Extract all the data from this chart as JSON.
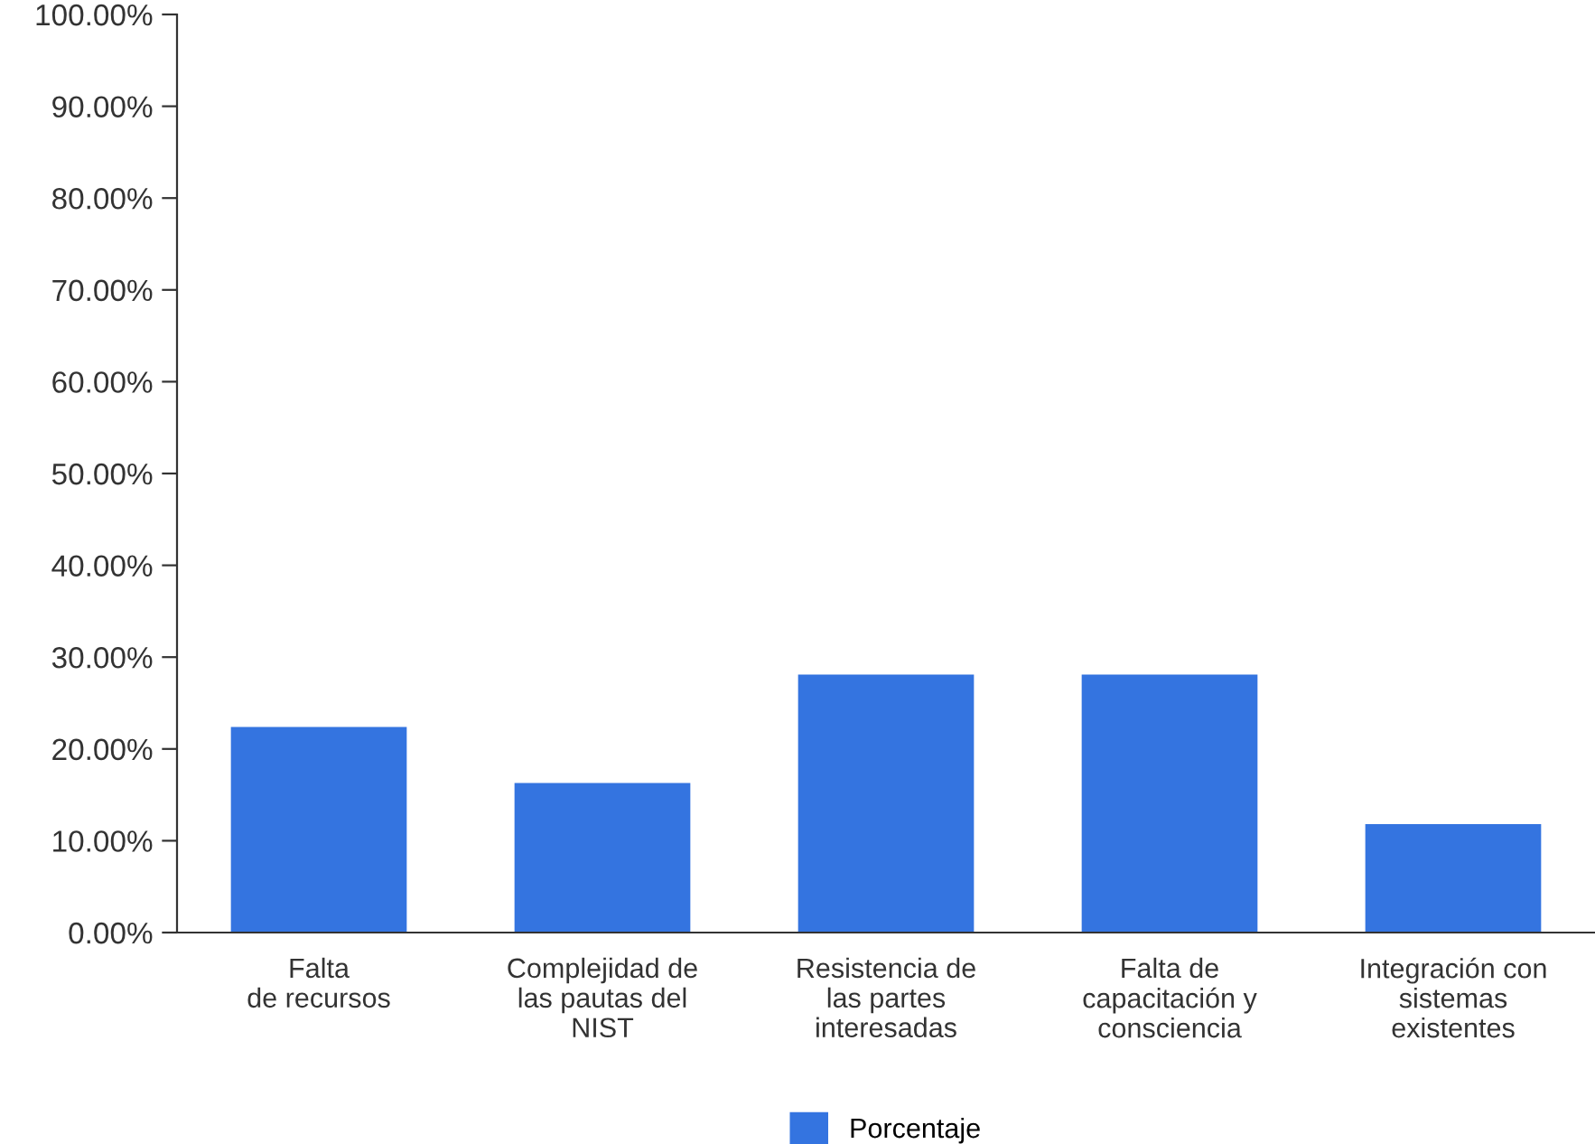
{
  "chart_data": {
    "type": "bar",
    "categories": [
      "Falta\nde recursos",
      "Complejidad de\nlas pautas del\nNIST",
      "Resistencia de\nlas partes\ninteresadas",
      "Falta de\ncapacitación y\nconsciencia",
      "Integración con\nsistemas\nexistentes"
    ],
    "series": [
      {
        "name": "Porcentaje",
        "color": "#3474e0",
        "values": [
          22.4,
          16.3,
          28.1,
          28.1,
          11.8
        ]
      }
    ],
    "ylim": [
      0,
      100
    ],
    "yticks": [
      {
        "value": 0,
        "label": "0.00%"
      },
      {
        "value": 10,
        "label": "10.00%"
      },
      {
        "value": 20,
        "label": "20.00%"
      },
      {
        "value": 30,
        "label": "30.00%"
      },
      {
        "value": 40,
        "label": "40.00%"
      },
      {
        "value": 50,
        "label": "50.00%"
      },
      {
        "value": 60,
        "label": "60.00%"
      },
      {
        "value": 70,
        "label": "70.00%"
      },
      {
        "value": 80,
        "label": "80.00%"
      },
      {
        "value": 90,
        "label": "90.00%"
      },
      {
        "value": 100,
        "label": "100.00%"
      }
    ],
    "grid": false,
    "legend": "bottom"
  }
}
